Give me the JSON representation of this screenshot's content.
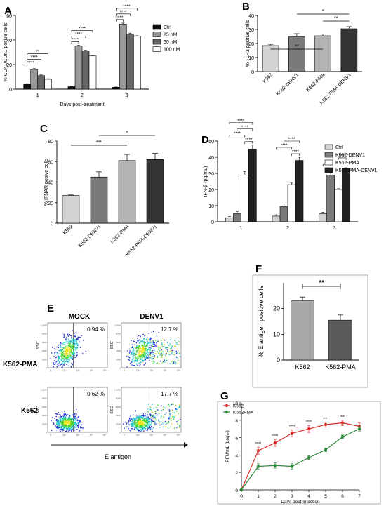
{
  "panels": {
    "A": {
      "letter": "A"
    },
    "B": {
      "letter": "B"
    },
    "C": {
      "letter": "C"
    },
    "D": {
      "letter": "D"
    },
    "E": {
      "letter": "E"
    },
    "F": {
      "letter": "F"
    },
    "G": {
      "letter": "G"
    }
  },
  "flow": {
    "col_labels": [
      "MOCK",
      "DENV1"
    ],
    "row_labels": [
      "K562-PMA",
      "K562"
    ],
    "percents": [
      [
        "0.94 %",
        "12.7 %"
      ],
      [
        "0.62 %",
        "17.7 %"
      ]
    ],
    "y_axis_label": "SSC",
    "x_axis_label": "E antigen",
    "y_ticks": [
      "1,000K",
      "800K",
      "600K",
      "400K",
      "200K",
      "0"
    ],
    "x_ticks": [
      "0",
      "10²",
      "10³",
      "10⁴",
      "10⁵"
    ],
    "colors": {
      "low": "#1c2fd6",
      "mid": "#19c2c9",
      "high": "#3fd42a",
      "peak": "#f2e21c"
    }
  },
  "chart_data": [
    {
      "panel": "A",
      "type": "bar",
      "ylabel": "% CD41/CD61 posive cells",
      "xlabel": "Days post-treatment",
      "categories": [
        "1",
        "2",
        "3"
      ],
      "ylim": [
        0,
        60
      ],
      "yticks": [
        0,
        20,
        40,
        60
      ],
      "legend_position": "right",
      "series": [
        {
          "name": "Ctrl",
          "color": "#111111",
          "values": [
            4,
            2,
            1.5
          ],
          "errors": [
            0.5,
            0.4,
            0.3
          ]
        },
        {
          "name": "25 nM",
          "color": "#9a9a9a",
          "values": [
            16,
            35,
            53
          ],
          "errors": [
            0.8,
            0.8,
            0.8
          ]
        },
        {
          "name": "50 nM",
          "color": "#666666",
          "values": [
            11,
            31,
            45
          ],
          "errors": [
            0.6,
            0.6,
            0.6
          ]
        },
        {
          "name": "100 nM",
          "color": "#ffffff",
          "values": [
            8,
            27,
            43
          ],
          "errors": [
            0.5,
            0.5,
            0.5
          ]
        }
      ],
      "significance": [
        {
          "group": 0,
          "from": 0,
          "to": 1,
          "label": "****"
        },
        {
          "group": 0,
          "from": 0,
          "to": 2,
          "label": "****"
        },
        {
          "group": 0,
          "from": 0,
          "to": 3,
          "label": "**"
        },
        {
          "group": 1,
          "from": 0,
          "to": 1,
          "label": "****"
        },
        {
          "group": 1,
          "from": 0,
          "to": 2,
          "label": "****"
        },
        {
          "group": 1,
          "from": 0,
          "to": 3,
          "label": "****"
        },
        {
          "group": 2,
          "from": 0,
          "to": 1,
          "label": "****"
        },
        {
          "group": 2,
          "from": 0,
          "to": 2,
          "label": "****"
        },
        {
          "group": 2,
          "from": 0,
          "to": 3,
          "label": "****"
        }
      ]
    },
    {
      "panel": "B",
      "type": "bar",
      "ylabel": "% TLR3 positive cells",
      "categories": [
        "K562",
        "K562-DENV1",
        "K562-PMA",
        "K562-PMA-DENV1"
      ],
      "values": [
        18.5,
        25,
        25.5,
        30.5
      ],
      "errors": [
        1,
        2,
        1.2,
        1.5
      ],
      "colors": [
        "#d3d3d3",
        "#7a7a7a",
        "#b3b3b3",
        "#333333"
      ],
      "ylim": [
        0,
        40
      ],
      "yticks": [
        0,
        10,
        20,
        30,
        40
      ],
      "significance": [
        {
          "from": 0,
          "to": 2,
          "label": "**"
        },
        {
          "from": 2,
          "to": 3,
          "label": "**"
        },
        {
          "from": 1,
          "to": 3,
          "label": "*"
        }
      ]
    },
    {
      "panel": "C",
      "type": "bar",
      "ylabel": "% IFNAR posive cells",
      "categories": [
        "K562",
        "K562-DENV1",
        "K562-PMA",
        "K562-PMA-DENV1"
      ],
      "values": [
        27,
        45,
        61,
        62
      ],
      "errors": [
        0.5,
        5,
        6,
        6
      ],
      "colors": [
        "#d3d3d3",
        "#7a7a7a",
        "#b3b3b3",
        "#333333"
      ],
      "ylim": [
        0,
        80
      ],
      "yticks": [
        0,
        20,
        40,
        60,
        80
      ],
      "significance": [
        {
          "from": 0,
          "to": 2,
          "label": "***"
        },
        {
          "from": 1,
          "to": 3,
          "label": "*"
        }
      ]
    },
    {
      "panel": "D",
      "type": "bar",
      "ylabel": "IFN-β (pg/mL)",
      "categories": [
        "1",
        "2",
        "3"
      ],
      "ylim": [
        0,
        50
      ],
      "yticks": [
        0,
        10,
        20,
        30,
        40,
        50
      ],
      "legend_position": "top-right",
      "series": [
        {
          "name": "Ctrl",
          "color": "#d3d3d3",
          "values": [
            2.5,
            3.5,
            5
          ],
          "errors": [
            0.8,
            0.8,
            0.8
          ]
        },
        {
          "name": "K562-DENV1",
          "color": "#7a7a7a",
          "values": [
            5,
            9.5,
            29
          ],
          "errors": [
            1.2,
            1.5,
            1.2
          ]
        },
        {
          "name": "K562-PMA",
          "color": "#ffffff",
          "values": [
            29,
            23,
            20
          ],
          "errors": [
            2,
            1,
            0.5
          ]
        },
        {
          "name": "K562-PMA-DENV1",
          "color": "#222222",
          "values": [
            45,
            38,
            33
          ],
          "errors": [
            2.5,
            2,
            0.5
          ]
        }
      ],
      "significance": [
        {
          "group": 0,
          "from": 0,
          "to": 2,
          "label": "****"
        },
        {
          "group": 0,
          "from": 2,
          "to": 3,
          "label": "****"
        },
        {
          "group": 0,
          "from": 1,
          "to": 3,
          "label": "****"
        },
        {
          "group": 0,
          "from": 0,
          "to": 3,
          "label": "****"
        },
        {
          "group": 1,
          "from": 0,
          "to": 2,
          "label": "****"
        },
        {
          "group": 1,
          "from": 2,
          "to": 3,
          "label": "****"
        },
        {
          "group": 1,
          "from": 1,
          "to": 3,
          "label": "****"
        },
        {
          "group": 2,
          "from": 0,
          "to": 1,
          "label": "**"
        },
        {
          "group": 2,
          "from": 2,
          "to": 3,
          "label": "****"
        }
      ]
    },
    {
      "panel": "F",
      "type": "bar",
      "ylabel": "% E antigen positive cells",
      "categories": [
        "K562",
        "K562-PMA"
      ],
      "values": [
        23,
        15.5
      ],
      "errors": [
        1.5,
        2
      ],
      "colors": [
        "#a8a8a8",
        "#5a5a5a"
      ],
      "ylim": [
        0,
        30
      ],
      "yticks": [
        0,
        10,
        20
      ],
      "significance": [
        {
          "from": 0,
          "to": 1,
          "label": "**"
        }
      ]
    },
    {
      "panel": "G",
      "type": "line",
      "ylabel": "PFU/mL (Log₁₀)",
      "xlabel": "Days post-infection",
      "x": [
        0,
        1,
        2,
        3,
        4,
        5,
        6,
        7
      ],
      "xlim": [
        0,
        7
      ],
      "ylim": [
        0,
        10
      ],
      "yticks": [
        0,
        2,
        4,
        6,
        8,
        10
      ],
      "legend_position": "top-left",
      "series": [
        {
          "name": "K562",
          "color": "#d8302e",
          "values": [
            0,
            4.5,
            5.4,
            6.5,
            7.0,
            7.5,
            7.7,
            7.3
          ],
          "errors": [
            0,
            0.4,
            0.4,
            0.4,
            0.4,
            0.3,
            0.3,
            0.4
          ]
        },
        {
          "name": "K562PMA",
          "color": "#2e8b3a",
          "values": [
            0,
            2.7,
            2.8,
            2.7,
            3.7,
            4.6,
            6.1,
            7.0
          ],
          "errors": [
            0,
            0.3,
            0.3,
            0.3,
            0.2,
            0.2,
            0.2,
            0.3
          ]
        }
      ],
      "annotations": [
        {
          "x": 1,
          "label": "****"
        },
        {
          "x": 2,
          "label": "****"
        },
        {
          "x": 3,
          "label": "****"
        },
        {
          "x": 4,
          "label": "****"
        },
        {
          "x": 5,
          "label": "****"
        },
        {
          "x": 6,
          "label": "****"
        }
      ]
    }
  ]
}
